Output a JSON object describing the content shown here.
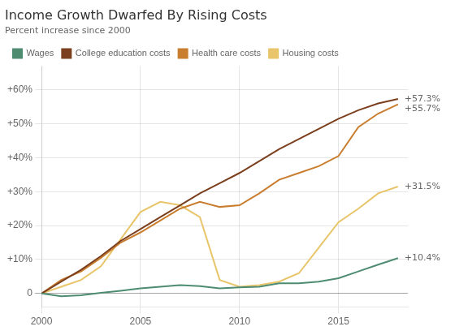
{
  "chart_data": {
    "type": "line",
    "title": "Income Growth Dwarfed By Rising Costs",
    "subtitle": "Percent increase since 2000",
    "x": [
      2000,
      2001,
      2002,
      2003,
      2004,
      2005,
      2006,
      2007,
      2008,
      2009,
      2010,
      2011,
      2012,
      2013,
      2014,
      2015,
      2016,
      2017,
      2018
    ],
    "series": [
      {
        "name": "Wages",
        "color": "#4e8c72",
        "values": [
          0,
          -0.8,
          -0.5,
          0.2,
          0.8,
          1.5,
          2.0,
          2.5,
          2.2,
          1.5,
          1.8,
          2.0,
          3.0,
          3.0,
          3.5,
          4.5,
          6.5,
          8.5,
          10.4
        ]
      },
      {
        "name": "College education costs",
        "color": "#7b3f1e",
        "values": [
          0,
          3.5,
          7.0,
          11.0,
          15.5,
          19.0,
          22.5,
          26.0,
          29.5,
          32.5,
          35.5,
          39.0,
          42.5,
          45.5,
          48.5,
          51.5,
          54.0,
          56.0,
          57.3
        ]
      },
      {
        "name": "Health care costs",
        "color": "#c97d2e",
        "values": [
          0,
          4.0,
          6.5,
          10.5,
          15.0,
          18.0,
          21.5,
          25.0,
          27.0,
          25.5,
          26.0,
          29.5,
          33.5,
          35.5,
          37.5,
          40.5,
          49.0,
          53.0,
          55.7
        ]
      },
      {
        "name": "Housing costs",
        "color": "#e8c56a",
        "values": [
          0,
          2.0,
          4.0,
          8.0,
          16.0,
          24.0,
          27.0,
          26.0,
          22.5,
          4.0,
          2.0,
          2.5,
          3.5,
          6.0,
          13.5,
          21.0,
          25.0,
          29.5,
          31.5
        ]
      }
    ],
    "xlim": [
      2000,
      2018.5
    ],
    "xticks": [
      2000,
      2005,
      2010,
      2015
    ],
    "ylim": [
      -4,
      67
    ],
    "yticks": [
      0,
      {
        "value": 10,
        "label": "+10%"
      },
      {
        "value": 20,
        "label": "+20%"
      },
      {
        "value": 30,
        "label": "+30%"
      },
      {
        "value": 40,
        "label": "+40%"
      },
      {
        "value": 50,
        "label": "+50%"
      },
      {
        "value": 60,
        "label": "+60%"
      }
    ],
    "annotations": [
      {
        "text": "+57.3%",
        "x": 2018,
        "y": 57.3
      },
      {
        "text": "+55.7%",
        "x": 2018,
        "y": 55.7
      },
      {
        "text": "+31.5%",
        "x": 2018,
        "y": 31.5
      },
      {
        "text": "+10.4%",
        "x": 2018,
        "y": 10.4
      }
    ],
    "grid": true,
    "legend": "upper left",
    "marker": "none"
  }
}
